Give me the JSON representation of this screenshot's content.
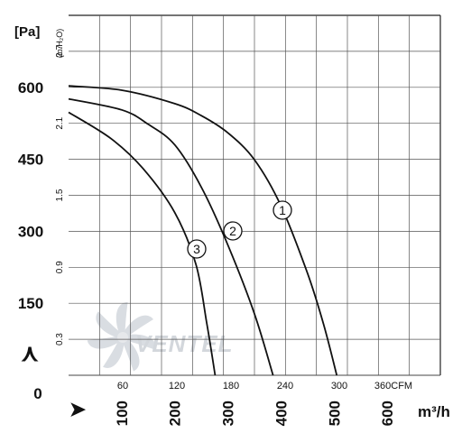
{
  "chart_data": {
    "type": "line",
    "x_axis_primary": {
      "unit": "m³/h",
      "ticks": [
        "100",
        "200",
        "300",
        "400",
        "500",
        "600"
      ],
      "range": [
        0,
        700
      ]
    },
    "x_axis_secondary": {
      "unit": "CFM",
      "ticks": [
        "60",
        "120",
        "180",
        "240",
        "300",
        "360CFM"
      ],
      "range": [
        0,
        412
      ]
    },
    "y_axis_primary": {
      "unit": "[Pa]",
      "ticks": [
        "0",
        "150",
        "300",
        "450",
        "600"
      ],
      "range": [
        0,
        750
      ]
    },
    "y_axis_secondary": {
      "unit": "(in.H₂O)",
      "ticks": [
        "0.3",
        "0.9",
        "1.5",
        "2.1",
        "2.7"
      ],
      "range": [
        0,
        3.0
      ]
    },
    "grid": true,
    "series": [
      {
        "name": "1",
        "points": [
          [
            0,
            603
          ],
          [
            100,
            594
          ],
          [
            200,
            566
          ],
          [
            250,
            541
          ],
          [
            300,
            505
          ],
          [
            350,
            449
          ],
          [
            400,
            353
          ],
          [
            450,
            212
          ],
          [
            480,
            107
          ],
          [
            505,
            0
          ]
        ]
      },
      {
        "name": "2",
        "points": [
          [
            0,
            576
          ],
          [
            100,
            553
          ],
          [
            150,
            523
          ],
          [
            200,
            480
          ],
          [
            250,
            392
          ],
          [
            300,
            271
          ],
          [
            350,
            128
          ],
          [
            385,
            0
          ]
        ]
      },
      {
        "name": "3",
        "points": [
          [
            0,
            548
          ],
          [
            80,
            493
          ],
          [
            140,
            431
          ],
          [
            200,
            339
          ],
          [
            240,
            230
          ],
          [
            260,
            110
          ],
          [
            276,
            0
          ]
        ]
      }
    ],
    "watermark": "VENTEL",
    "up_arrow_glyph": "⋏",
    "right_arrow_glyph": "➤"
  }
}
